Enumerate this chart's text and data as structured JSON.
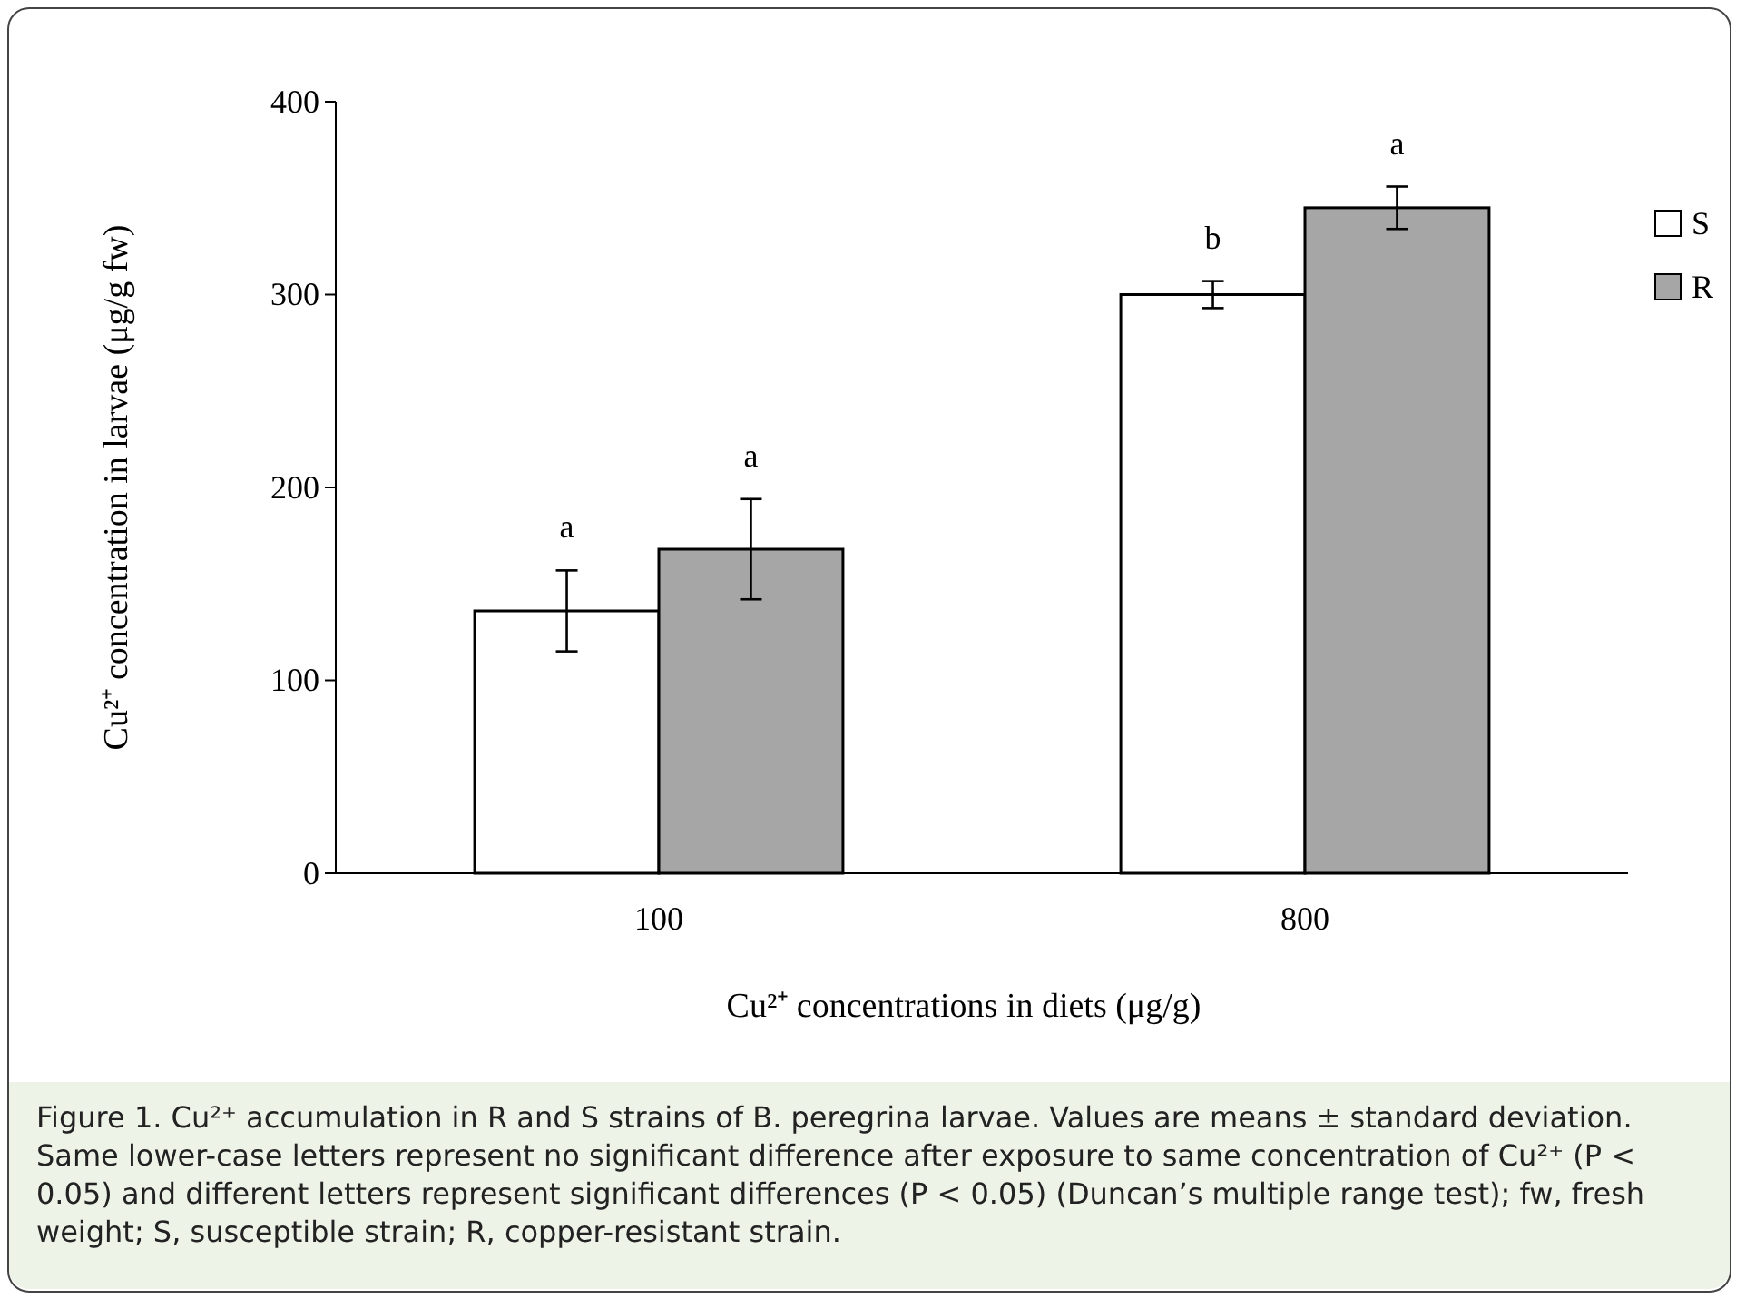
{
  "chart_data": {
    "type": "bar",
    "categories": [
      "100",
      "800"
    ],
    "series": [
      {
        "name": "S",
        "color": "#ffffff",
        "values": [
          136,
          300
        ],
        "errors": [
          21,
          7
        ]
      },
      {
        "name": "R",
        "color": "#a6a6a6",
        "values": [
          168,
          345
        ],
        "errors": [
          26,
          11
        ]
      }
    ],
    "ylim": [
      0,
      400
    ],
    "yticks": [
      0,
      100,
      200,
      300,
      400
    ],
    "xlabel": "Cu²⁺ concentrations in diets (μg/g)",
    "ylabel": "Cu²⁺ concentration in larvae (μg/g fw)",
    "legend": "top right",
    "annotations": [
      "a",
      "a",
      "b",
      "a",
      "Figure 1. Cu²⁺ accumulation in R and S strains of B. peregrina larvae. Values are means ± standard deviation. Same lower-case letters represent no significant difference after exposure to same concentration of Cu²⁺ (P < 0.05) and different letters represent significant differences (P < 0.05) (Duncan’s multiple range test); fw, fresh weight; S, susceptible strain; R, copper-resistant strain."
    ]
  }
}
